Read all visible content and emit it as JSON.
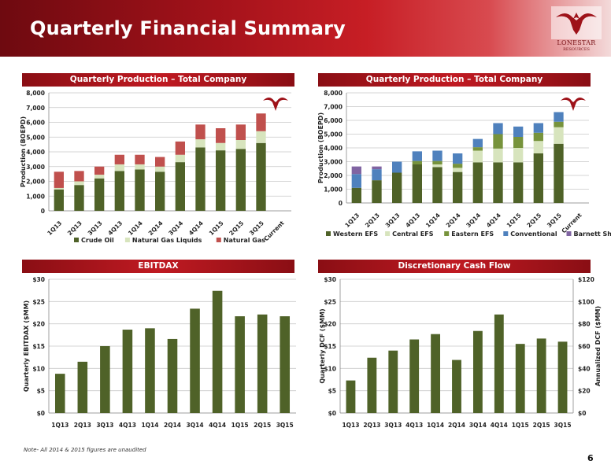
{
  "header": {
    "title": "Quarterly Financial Summary",
    "logo_text": "LONESTAR",
    "logo_sub": "RESOURCES"
  },
  "colors": {
    "crude_oil": "#4f6228",
    "ngl": "#d7e4bd",
    "natural_gas": "#c0504d",
    "western_efs": "#4f6228",
    "central_efs": "#d7e4bd",
    "eastern_efs": "#77933c",
    "conventional": "#4f81bd",
    "barnett_shale": "#8064a2",
    "single_bar": "#4f6228"
  },
  "footer": {
    "note": "Note- All 2014 & 2015 figures are unaudited",
    "page_number": "6"
  },
  "chart_data": [
    {
      "type": "bar",
      "stacked": true,
      "title": "Quarterly Production – Total Company",
      "xlabel": "",
      "ylabel": "Production (BOEPD)",
      "ylim": [
        0,
        8000
      ],
      "yticks": [
        "0",
        "1,000",
        "2,000",
        "3,000",
        "4,000",
        "5,000",
        "6,000",
        "7,000",
        "8,000"
      ],
      "grid": true,
      "legend": "bottom",
      "categories": [
        "1Q13",
        "2Q13",
        "3Q13",
        "4Q13",
        "1Q14",
        "2Q14",
        "3Q14",
        "4Q14",
        "1Q15",
        "2Q15",
        "3Q15",
        "Current"
      ],
      "series": [
        {
          "name": "Crude Oil",
          "color_key": "crude_oil",
          "values": [
            1450,
            1750,
            2200,
            2700,
            2800,
            2650,
            3300,
            4300,
            4100,
            4200,
            4600,
            null
          ]
        },
        {
          "name": "Natural Gas Liquids",
          "color_key": "ngl",
          "values": [
            100,
            250,
            250,
            450,
            350,
            350,
            500,
            550,
            500,
            600,
            800,
            null
          ]
        },
        {
          "name": "Natural Gas",
          "color_key": "natural_gas",
          "values": [
            1100,
            700,
            550,
            650,
            650,
            650,
            900,
            1000,
            1000,
            1050,
            1200,
            null
          ]
        }
      ]
    },
    {
      "type": "bar",
      "stacked": true,
      "title": "Quarterly Production – Total Company",
      "xlabel": "",
      "ylabel": "Production (BOEPD)",
      "ylim": [
        0,
        8000
      ],
      "yticks": [
        "0",
        "1,000",
        "2,000",
        "3,000",
        "4,000",
        "5,000",
        "6,000",
        "7,000",
        "8,000"
      ],
      "grid": true,
      "legend": "bottom",
      "categories": [
        "1Q13",
        "2Q13",
        "3Q13",
        "4Q13",
        "1Q14",
        "2Q14",
        "3Q14",
        "4Q14",
        "1Q15",
        "2Q15",
        "3Q15",
        "Current"
      ],
      "series": [
        {
          "name": "Western EFS",
          "color_key": "western_efs",
          "values": [
            1100,
            1650,
            2200,
            2800,
            2600,
            2250,
            2950,
            2950,
            2950,
            3600,
            4300,
            null
          ]
        },
        {
          "name": "Central EFS",
          "color_key": "central_efs",
          "values": [
            0,
            0,
            0,
            0,
            200,
            300,
            850,
            1000,
            1050,
            900,
            1200,
            null
          ]
        },
        {
          "name": "Eastern EFS",
          "color_key": "eastern_efs",
          "values": [
            0,
            0,
            0,
            250,
            250,
            300,
            250,
            1050,
            800,
            600,
            400,
            null
          ]
        },
        {
          "name": "Conventional",
          "color_key": "conventional",
          "values": [
            1000,
            800,
            800,
            700,
            750,
            750,
            600,
            800,
            750,
            700,
            700,
            null
          ]
        },
        {
          "name": "Barnett Shale",
          "color_key": "barnett_shale",
          "values": [
            550,
            200,
            0,
            0,
            0,
            0,
            0,
            0,
            0,
            0,
            0,
            null
          ]
        }
      ]
    },
    {
      "type": "bar",
      "title": "EBITDAX",
      "xlabel": "",
      "ylabel": "Quarterly EBITDAX ($MM)",
      "ylim": [
        0,
        30
      ],
      "yticks": [
        "$0",
        "$5",
        "$10",
        "$15",
        "$20",
        "$25",
        "$30"
      ],
      "grid": true,
      "categories": [
        "1Q13",
        "2Q13",
        "3Q13",
        "4Q13",
        "1Q14",
        "2Q14",
        "3Q14",
        "4Q14",
        "1Q15",
        "2Q15",
        "3Q15"
      ],
      "series": [
        {
          "name": "",
          "color_key": "single_bar",
          "values": [
            8.8,
            11.5,
            15.0,
            18.7,
            19.0,
            16.6,
            23.4,
            27.4,
            21.7,
            22.1,
            21.7
          ]
        }
      ]
    },
    {
      "type": "bar",
      "title": "Discretionary Cash Flow",
      "xlabel": "",
      "ylabel": "Quarterly DCF ($MM)",
      "y2label": "Annualized DCF ($MM)",
      "ylim": [
        0,
        30
      ],
      "y2lim": [
        0,
        120
      ],
      "yticks": [
        "$0",
        "$5",
        "$10",
        "$15",
        "$20",
        "$25",
        "$30"
      ],
      "y2ticks": [
        "$0",
        "$20",
        "$40",
        "$60",
        "$80",
        "$100",
        "$120"
      ],
      "grid": true,
      "categories": [
        "1Q13",
        "2Q13",
        "3Q13",
        "4Q13",
        "1Q14",
        "2Q14",
        "3Q14",
        "4Q14",
        "1Q15",
        "2Q15",
        "3Q15"
      ],
      "series": [
        {
          "name": "",
          "color_key": "single_bar",
          "values": [
            7.3,
            12.4,
            14.0,
            16.5,
            17.7,
            11.9,
            18.4,
            22.1,
            15.5,
            16.7,
            16.0
          ]
        }
      ]
    }
  ]
}
